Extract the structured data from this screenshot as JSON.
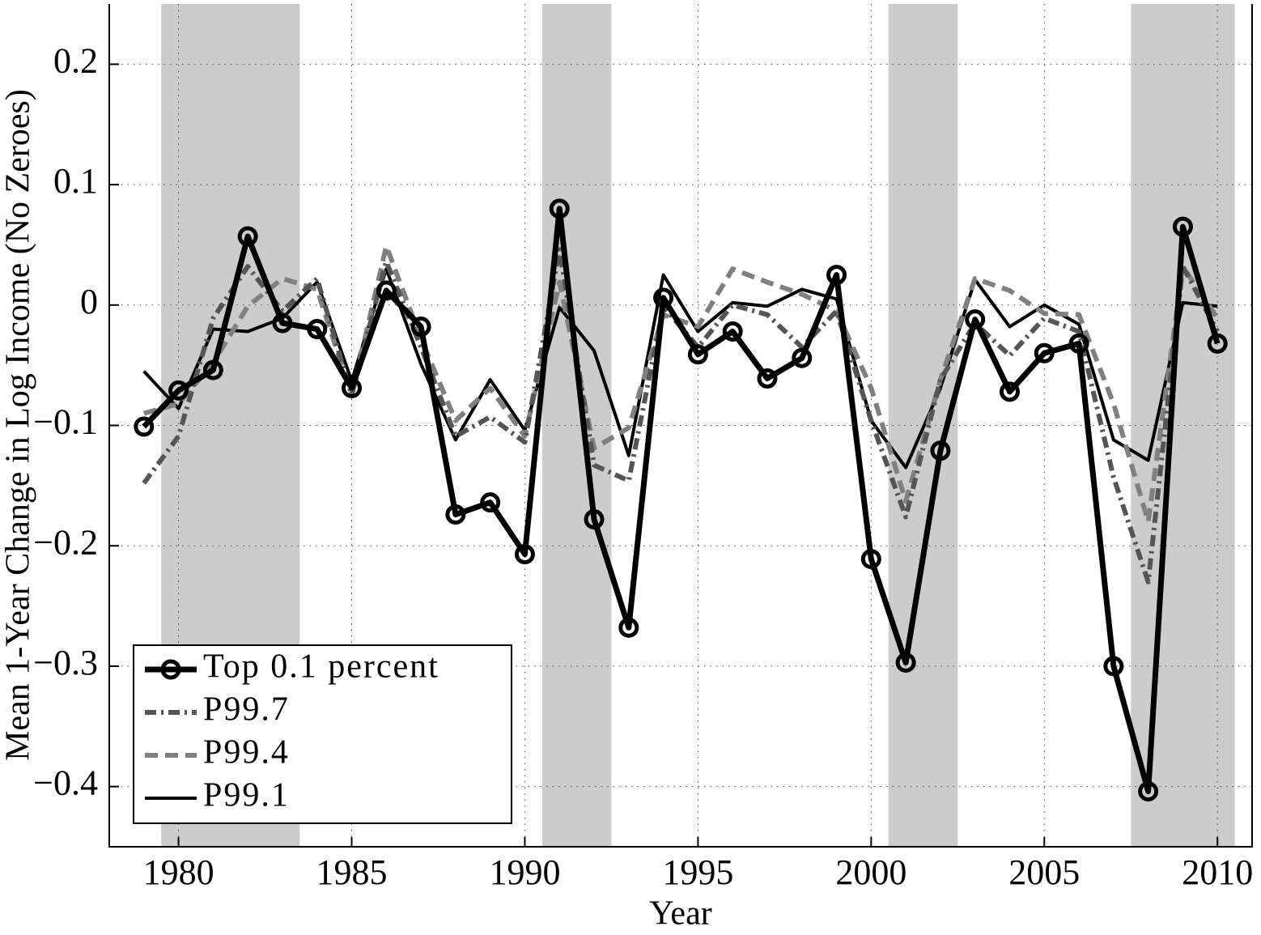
{
  "chart_data": {
    "type": "line",
    "x_label": "Year",
    "y_label": "Mean 1-Year Change in Log Income (No Zeroes)",
    "x": [
      1979,
      1980,
      1981,
      1982,
      1983,
      1984,
      1985,
      1986,
      1987,
      1988,
      1989,
      1990,
      1991,
      1992,
      1993,
      1994,
      1995,
      1996,
      1997,
      1998,
      1999,
      2000,
      2001,
      2002,
      2003,
      2004,
      2005,
      2006,
      2007,
      2008,
      2009,
      2010
    ],
    "series": [
      {
        "name": "Top 0.1 percent",
        "color": "#000000",
        "line_style": "solid",
        "marker": "circle",
        "values": [
          -0.101,
          -0.071,
          -0.054,
          0.057,
          -0.015,
          -0.02,
          -0.069,
          0.012,
          -0.018,
          -0.174,
          -0.164,
          -0.207,
          0.08,
          -0.178,
          -0.268,
          0.006,
          -0.041,
          -0.022,
          -0.061,
          -0.044,
          0.025,
          -0.211,
          -0.297,
          -0.121,
          -0.012,
          -0.072,
          -0.04,
          -0.032,
          -0.3,
          -0.404,
          0.065,
          -0.032
        ]
      },
      {
        "name": "P99.7",
        "color": "#555555",
        "line_style": "dashdot",
        "values": [
          -0.148,
          -0.109,
          -0.011,
          0.032,
          -0.005,
          0.022,
          -0.075,
          0.036,
          -0.035,
          -0.109,
          -0.093,
          -0.114,
          0.046,
          -0.133,
          -0.146,
          -0.001,
          -0.035,
          0,
          -0.008,
          -0.035,
          -0.005,
          -0.096,
          -0.176,
          -0.062,
          -0.015,
          -0.042,
          -0.011,
          -0.022,
          -0.143,
          -0.23,
          0.032,
          -0.022
        ]
      },
      {
        "name": "P99.4",
        "color": "#808080",
        "line_style": "dashed",
        "values": [
          -0.09,
          -0.082,
          -0.048,
          -0.001,
          0.022,
          0.013,
          -0.075,
          0.049,
          -0.028,
          -0.096,
          -0.069,
          -0.109,
          0.019,
          -0.119,
          -0.102,
          -0.008,
          -0.018,
          0.03,
          0.019,
          0.009,
          -0.005,
          -0.069,
          -0.163,
          -0.062,
          0.022,
          0.012,
          -0.007,
          -0.008,
          -0.082,
          -0.18,
          0.032,
          -0.011
        ]
      },
      {
        "name": "P99.1",
        "color": "#000000",
        "line_style": "solid",
        "values": [
          -0.055,
          -0.086,
          -0.02,
          -0.022,
          -0.011,
          0.019,
          -0.063,
          0.03,
          -0.049,
          -0.112,
          -0.062,
          -0.104,
          -0.002,
          -0.038,
          -0.125,
          0.025,
          -0.022,
          0.002,
          -0.001,
          0.013,
          0.005,
          -0.096,
          -0.135,
          -0.069,
          0.021,
          -0.018,
          0,
          -0.016,
          -0.112,
          -0.129,
          0.002,
          -0.001
        ]
      }
    ],
    "shaded_periods": [
      [
        1979.5,
        1983.5
      ],
      [
        1990.5,
        1992.5
      ],
      [
        2000.5,
        2002.5
      ],
      [
        2007.5,
        2010.5
      ]
    ],
    "shade_color": "#cccccc",
    "xlim": [
      1978,
      2011
    ],
    "ylim": [
      -0.45,
      0.25
    ],
    "xticks": [
      1980,
      1985,
      1990,
      1995,
      2000,
      2005,
      2010
    ],
    "yticks": [
      {
        "value": -0.4,
        "label": "−0.4"
      },
      {
        "value": -0.3,
        "label": "−0.3"
      },
      {
        "value": -0.2,
        "label": "−0.2"
      },
      {
        "value": -0.1,
        "label": "−0.1"
      },
      0,
      0.1,
      0.2
    ],
    "grid": true,
    "legend": "lower left"
  }
}
